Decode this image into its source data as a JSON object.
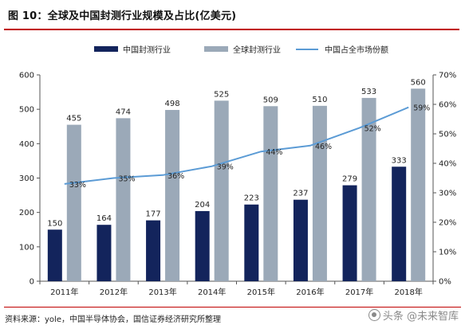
{
  "figure": {
    "title": "图 10：全球及中国封测行业规模及占比(亿美元)",
    "source": "资料来源：yole，中国半导体协会，国信证券经济研究所整理",
    "watermark": "头条 @未来智库"
  },
  "colors": {
    "china_bar": "#13245c",
    "global_bar": "#9ba9b8",
    "share_line": "#5b9bd5",
    "accent_red": "#c00000"
  },
  "chart_data": {
    "type": "bar",
    "categories": [
      "2011年",
      "2012年",
      "2013年",
      "2014年",
      "2015年",
      "2016年",
      "2017年",
      "2018年"
    ],
    "series": [
      {
        "name": "中国封测行业",
        "type": "bar",
        "values": [
          150,
          164,
          177,
          204,
          223,
          237,
          279,
          333
        ]
      },
      {
        "name": "全球封测行业",
        "type": "bar",
        "values": [
          455,
          474,
          498,
          525,
          509,
          510,
          533,
          560
        ]
      },
      {
        "name": "中国占全市场份额",
        "type": "line",
        "axis": "right",
        "values": [
          33,
          35,
          36,
          39,
          44,
          46,
          52,
          59
        ],
        "labels": [
          "33%",
          "35%",
          "36%",
          "39%",
          "44%",
          "46%",
          "52%",
          "59%"
        ]
      }
    ],
    "y_left": {
      "min": 0,
      "max": 600,
      "ticks": [
        "0",
        "100",
        "200",
        "300",
        "400",
        "500",
        "600"
      ]
    },
    "y_right": {
      "min": 0,
      "max": 70,
      "ticks": [
        "0%",
        "10%",
        "20%",
        "30%",
        "40%",
        "50%",
        "60%",
        "70%"
      ]
    },
    "legend_position": "top",
    "grid": false
  }
}
